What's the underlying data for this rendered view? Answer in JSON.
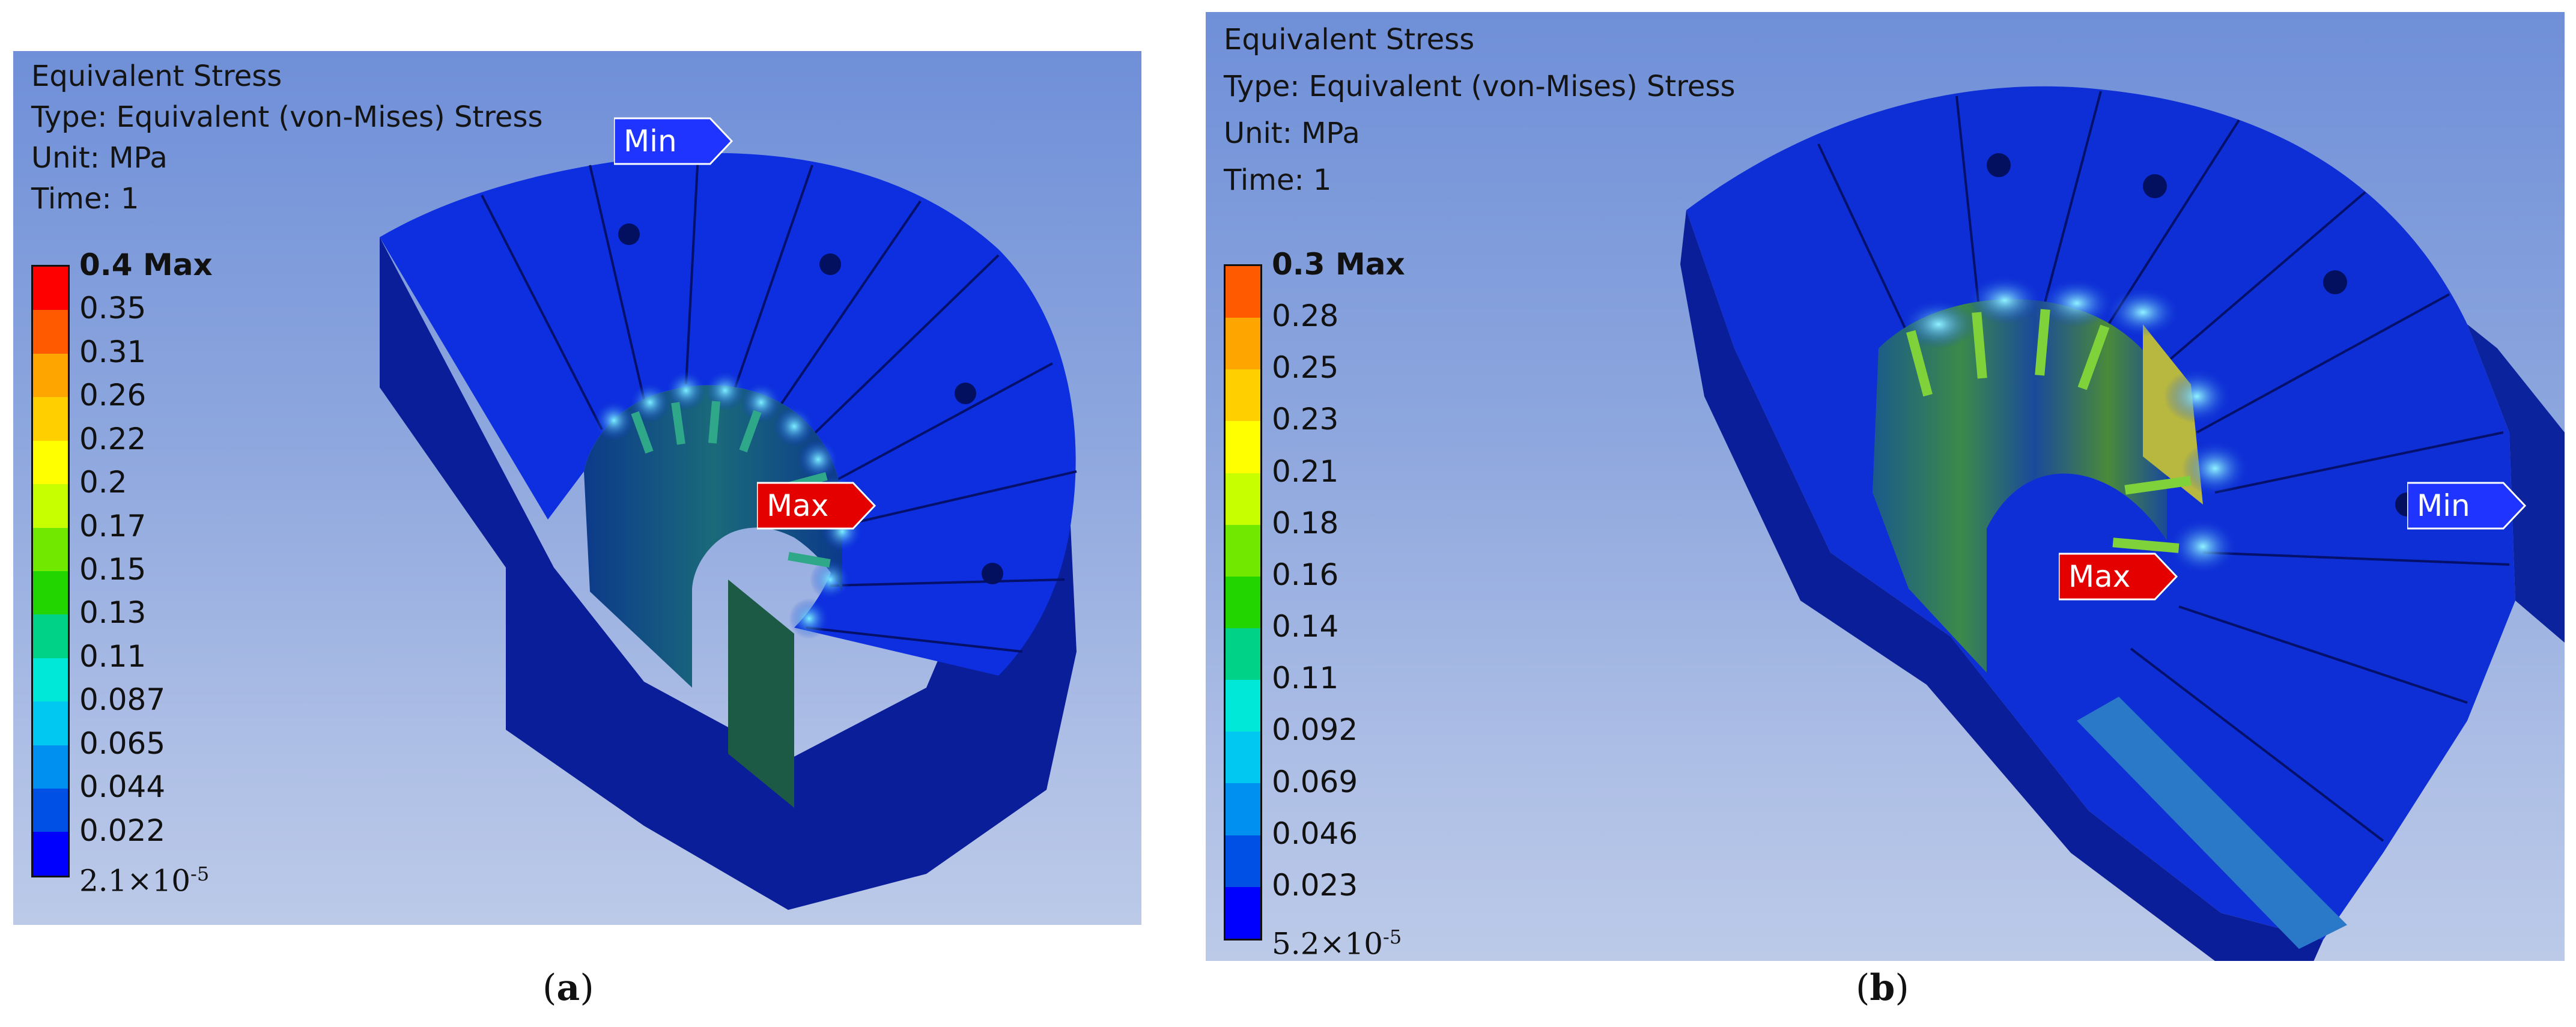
{
  "panel_a": {
    "title": "Equivalent Stress",
    "type_line": "Type: Equivalent (von-Mises) Stress",
    "unit_line": "Unit: MPa",
    "time_line": "Time: 1",
    "legend_max": "0.4 Max",
    "legend_labels": [
      "0.35",
      "0.31",
      "0.26",
      "0.22",
      "0.2",
      "0.17",
      "0.15",
      "0.13",
      "0.11",
      "0.087",
      "0.065",
      "0.044",
      "0.022"
    ],
    "legend_min_mantissa": "2.1×10",
    "legend_min_exp": "-5",
    "min_tag": "Min",
    "max_tag": "Max",
    "caption_open": "(",
    "caption_letter": "a",
    "caption_close": ")"
  },
  "panel_b": {
    "title": "Equivalent Stress",
    "type_line": "Type: Equivalent (von-Mises) Stress",
    "unit_line": "Unit: MPa",
    "time_line": "Time: 1",
    "legend_max": "0.3 Max",
    "legend_labels": [
      "0.28",
      "0.25",
      "0.23",
      "0.21",
      "0.18",
      "0.16",
      "0.14",
      "0.11",
      "0.092",
      "0.069",
      "0.046",
      "0.023"
    ],
    "legend_min_mantissa": "5.2×10",
    "legend_min_exp": "-5",
    "min_tag": "Min",
    "max_tag": "Max",
    "caption_open": "(",
    "caption_letter": "b",
    "caption_close": ")"
  },
  "legend_colors": [
    "#ff0000",
    "#ff5a00",
    "#ffa500",
    "#ffcf00",
    "#ffff00",
    "#c8ff00",
    "#70e800",
    "#22d400",
    "#00d288",
    "#00e8d8",
    "#00c8f0",
    "#0090f0",
    "#0050e6",
    "#0000ff"
  ],
  "tag_colors": {
    "min": "#1f35ff",
    "max": "#e50000"
  }
}
